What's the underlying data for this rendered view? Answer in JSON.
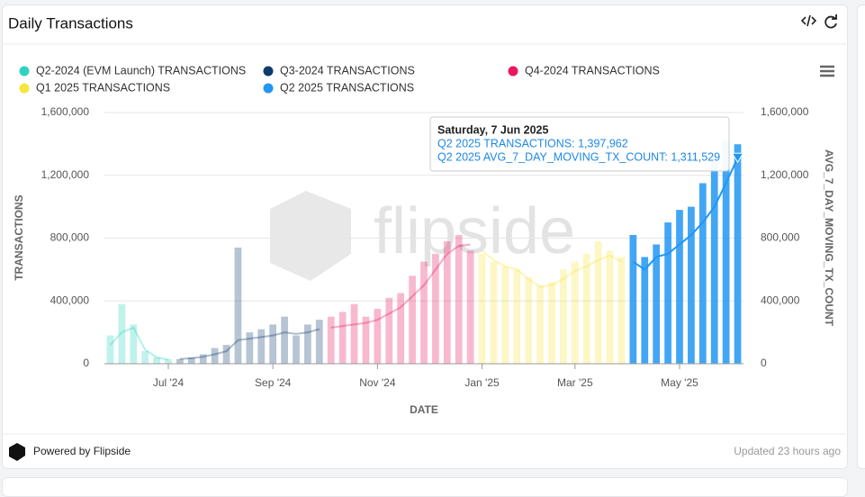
{
  "header": {
    "title": "Daily Transactions"
  },
  "footer": {
    "powered": "Powered by Flipside",
    "updated": "Updated 23 hours ago"
  },
  "chart_data": {
    "type": "bar",
    "watermark": "flipside",
    "x_label": "DATE",
    "y_label": "TRANSACTIONS",
    "y2_label": "AVG_7_DAY_MOVING_TX_COUNT",
    "categories": [
      null,
      null,
      null,
      null,
      null,
      "Jul '24",
      null,
      null,
      null,
      null,
      null,
      null,
      null,
      null,
      "Sep '24",
      null,
      null,
      null,
      null,
      null,
      null,
      null,
      null,
      "Nov '24",
      null,
      null,
      null,
      null,
      null,
      null,
      null,
      null,
      "Jan '25",
      null,
      null,
      null,
      null,
      null,
      null,
      null,
      "Mar '25",
      null,
      null,
      null,
      null,
      null,
      null,
      null,
      null,
      "May '25",
      null,
      null,
      null,
      null,
      null
    ],
    "ylim": [
      0,
      1600000
    ],
    "yticks": [
      0,
      {
        "value": 400000,
        "label": "400,000"
      },
      {
        "value": 800000,
        "label": "800,000"
      },
      {
        "value": 1200000,
        "label": "1,200,000"
      },
      {
        "value": 1600000,
        "label": "1,600,000"
      }
    ],
    "y2lim": [
      0,
      1600000
    ],
    "y2ticks": [
      0,
      {
        "value": 400000,
        "label": "400,000"
      },
      {
        "value": 800000,
        "label": "800,000"
      },
      {
        "value": 1200000,
        "label": "1,200,000"
      },
      {
        "value": 1600000,
        "label": "1,600,000"
      }
    ],
    "series": [
      {
        "name": "Q2-2024 (EVM Launch) TRANSACTIONS",
        "color": "#2ed3c1",
        "values": [
          180000,
          380000,
          250000,
          80000,
          40000,
          30000,
          null,
          null,
          null,
          null,
          null,
          null,
          null,
          null,
          null,
          null,
          null,
          null,
          null,
          null,
          null,
          null,
          null,
          null,
          null,
          null,
          null,
          null,
          null,
          null,
          null,
          null,
          null,
          null,
          null,
          null,
          null,
          null,
          null,
          null,
          null,
          null,
          null,
          null,
          null,
          null,
          null,
          null,
          null,
          null,
          null,
          null,
          null,
          null,
          null
        ],
        "avg_values": [
          120000,
          200000,
          230000,
          90000,
          40000,
          25000,
          null,
          null,
          null,
          null,
          null,
          null,
          null,
          null,
          null,
          null,
          null,
          null,
          null,
          null,
          null,
          null,
          null,
          null,
          null,
          null,
          null,
          null,
          null,
          null,
          null,
          null,
          null,
          null,
          null,
          null,
          null,
          null,
          null,
          null,
          null,
          null,
          null,
          null,
          null,
          null,
          null,
          null,
          null,
          null,
          null,
          null,
          null,
          null,
          null
        ]
      },
      {
        "name": "Q3-2024 TRANSACTIONS",
        "color": "#0d3b6e",
        "values": [
          null,
          null,
          null,
          null,
          null,
          null,
          30000,
          40000,
          60000,
          100000,
          120000,
          740000,
          200000,
          220000,
          250000,
          300000,
          180000,
          250000,
          280000,
          null,
          null,
          null,
          null,
          null,
          null,
          null,
          null,
          null,
          null,
          null,
          null,
          null,
          null,
          null,
          null,
          null,
          null,
          null,
          null,
          null,
          null,
          null,
          null,
          null,
          null,
          null,
          null,
          null,
          null,
          null,
          null,
          null,
          null,
          null,
          null
        ],
        "avg_values": [
          null,
          null,
          null,
          null,
          null,
          null,
          30000,
          35000,
          45000,
          60000,
          80000,
          150000,
          160000,
          170000,
          180000,
          200000,
          190000,
          200000,
          220000,
          null,
          null,
          null,
          null,
          null,
          null,
          null,
          null,
          null,
          null,
          null,
          null,
          null,
          null,
          null,
          null,
          null,
          null,
          null,
          null,
          null,
          null,
          null,
          null,
          null,
          null,
          null,
          null,
          null,
          null,
          null,
          null,
          null,
          null,
          null,
          null
        ]
      },
      {
        "name": "Q4-2024 TRANSACTIONS",
        "color": "#e8175d",
        "values": [
          null,
          null,
          null,
          null,
          null,
          null,
          null,
          null,
          null,
          null,
          null,
          null,
          null,
          null,
          null,
          null,
          null,
          null,
          null,
          300000,
          330000,
          380000,
          300000,
          350000,
          420000,
          450000,
          560000,
          650000,
          700000,
          780000,
          820000,
          720000,
          null,
          null,
          null,
          null,
          null,
          null,
          null,
          null,
          null,
          null,
          null,
          null,
          null,
          null,
          null,
          null,
          null,
          null,
          null,
          null,
          null,
          null,
          null
        ],
        "avg_values": [
          null,
          null,
          null,
          null,
          null,
          null,
          null,
          null,
          null,
          null,
          null,
          null,
          null,
          null,
          null,
          null,
          null,
          null,
          null,
          230000,
          240000,
          250000,
          260000,
          280000,
          320000,
          360000,
          430000,
          500000,
          600000,
          700000,
          750000,
          760000,
          null,
          null,
          null,
          null,
          null,
          null,
          null,
          null,
          null,
          null,
          null,
          null,
          null,
          null,
          null,
          null,
          null,
          null,
          null,
          null,
          null,
          null,
          null
        ]
      },
      {
        "name": "Q1 2025 TRANSACTIONS",
        "color": "#f5e63c",
        "values": [
          null,
          null,
          null,
          null,
          null,
          null,
          null,
          null,
          null,
          null,
          null,
          null,
          null,
          null,
          null,
          null,
          null,
          null,
          null,
          null,
          null,
          null,
          null,
          null,
          null,
          null,
          null,
          null,
          null,
          null,
          null,
          null,
          700000,
          650000,
          620000,
          600000,
          550000,
          500000,
          520000,
          600000,
          650000,
          700000,
          780000,
          720000,
          680000,
          null,
          null,
          null,
          null,
          null,
          null,
          null,
          null,
          null,
          null
        ],
        "avg_values": [
          null,
          null,
          null,
          null,
          null,
          null,
          null,
          null,
          null,
          null,
          null,
          null,
          null,
          null,
          null,
          null,
          null,
          null,
          null,
          null,
          null,
          null,
          null,
          null,
          null,
          null,
          null,
          null,
          null,
          null,
          null,
          null,
          720000,
          660000,
          620000,
          600000,
          540000,
          490000,
          500000,
          540000,
          590000,
          620000,
          660000,
          690000,
          650000,
          null,
          null,
          null,
          null,
          null,
          null,
          null,
          null,
          null,
          null
        ]
      },
      {
        "name": "Q2 2025 TRANSACTIONS",
        "color": "#2196f3",
        "values": [
          null,
          null,
          null,
          null,
          null,
          null,
          null,
          null,
          null,
          null,
          null,
          null,
          null,
          null,
          null,
          null,
          null,
          null,
          null,
          null,
          null,
          null,
          null,
          null,
          null,
          null,
          null,
          null,
          null,
          null,
          null,
          null,
          null,
          null,
          null,
          null,
          null,
          null,
          null,
          null,
          null,
          null,
          null,
          null,
          null,
          820000,
          680000,
          760000,
          900000,
          980000,
          1000000,
          1150000,
          1300000,
          1420000,
          1397962
        ],
        "avg_values": [
          null,
          null,
          null,
          null,
          null,
          null,
          null,
          null,
          null,
          null,
          null,
          null,
          null,
          null,
          null,
          null,
          null,
          null,
          null,
          null,
          null,
          null,
          null,
          null,
          null,
          null,
          null,
          null,
          null,
          null,
          null,
          null,
          null,
          null,
          null,
          null,
          null,
          null,
          null,
          null,
          null,
          null,
          null,
          null,
          null,
          650000,
          600000,
          680000,
          700000,
          760000,
          820000,
          900000,
          1000000,
          1150000,
          1311529
        ]
      }
    ],
    "tooltip": {
      "title": "Saturday, 7 Jun 2025",
      "lines": [
        "Q2 2025 TRANSACTIONS: 1,397,962",
        "Q2 2025 AVG_7_DAY_MOVING_TX_COUNT: 1,311,529"
      ]
    }
  }
}
